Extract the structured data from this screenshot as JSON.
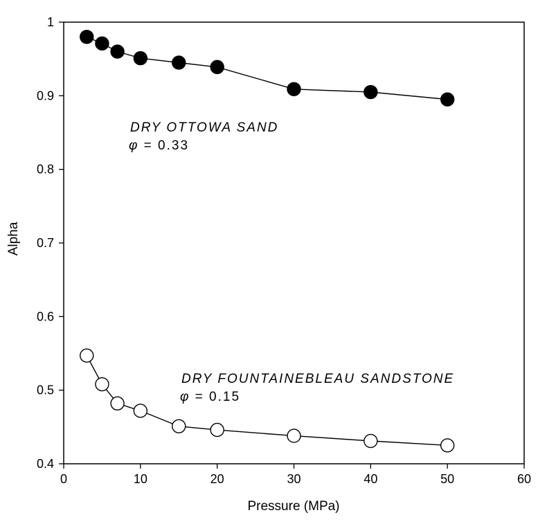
{
  "chart_data": {
    "type": "scatter",
    "title": "",
    "xlabel": "Pressure (MPa)",
    "ylabel": "Alpha",
    "xlim": [
      0,
      60
    ],
    "ylim": [
      0.4,
      1.0
    ],
    "xticks": [
      "0",
      "10",
      "20",
      "30",
      "40",
      "50",
      "60"
    ],
    "yticks": [
      "0.4",
      "0.5",
      "0.6",
      "0.7",
      "0.8",
      "0.9",
      "1"
    ],
    "grid": false,
    "legend": "none",
    "series": [
      {
        "marker": "filled-circle",
        "color": "#000000",
        "x": [
          3,
          5,
          7,
          10,
          15,
          20,
          30,
          40,
          50
        ],
        "y": [
          0.98,
          0.971,
          0.96,
          0.951,
          0.945,
          0.939,
          0.909,
          0.905,
          0.895
        ]
      },
      {
        "marker": "open-circle",
        "color": "#000000",
        "x": [
          3,
          5,
          7,
          10,
          15,
          20,
          30,
          40,
          50
        ],
        "y": [
          0.547,
          0.508,
          0.482,
          0.472,
          0.451,
          0.446,
          0.438,
          0.431,
          0.425
        ]
      }
    ],
    "annotations": [
      {
        "line1": "DRY OTTOWA SAND",
        "phi_symbol": "φ",
        "phi_text": " = 0.33"
      },
      {
        "line1": "DRY FOUNTAINEBLEAU SANDSTONE",
        "phi_symbol": "φ",
        "phi_text": " = 0.15"
      }
    ]
  }
}
